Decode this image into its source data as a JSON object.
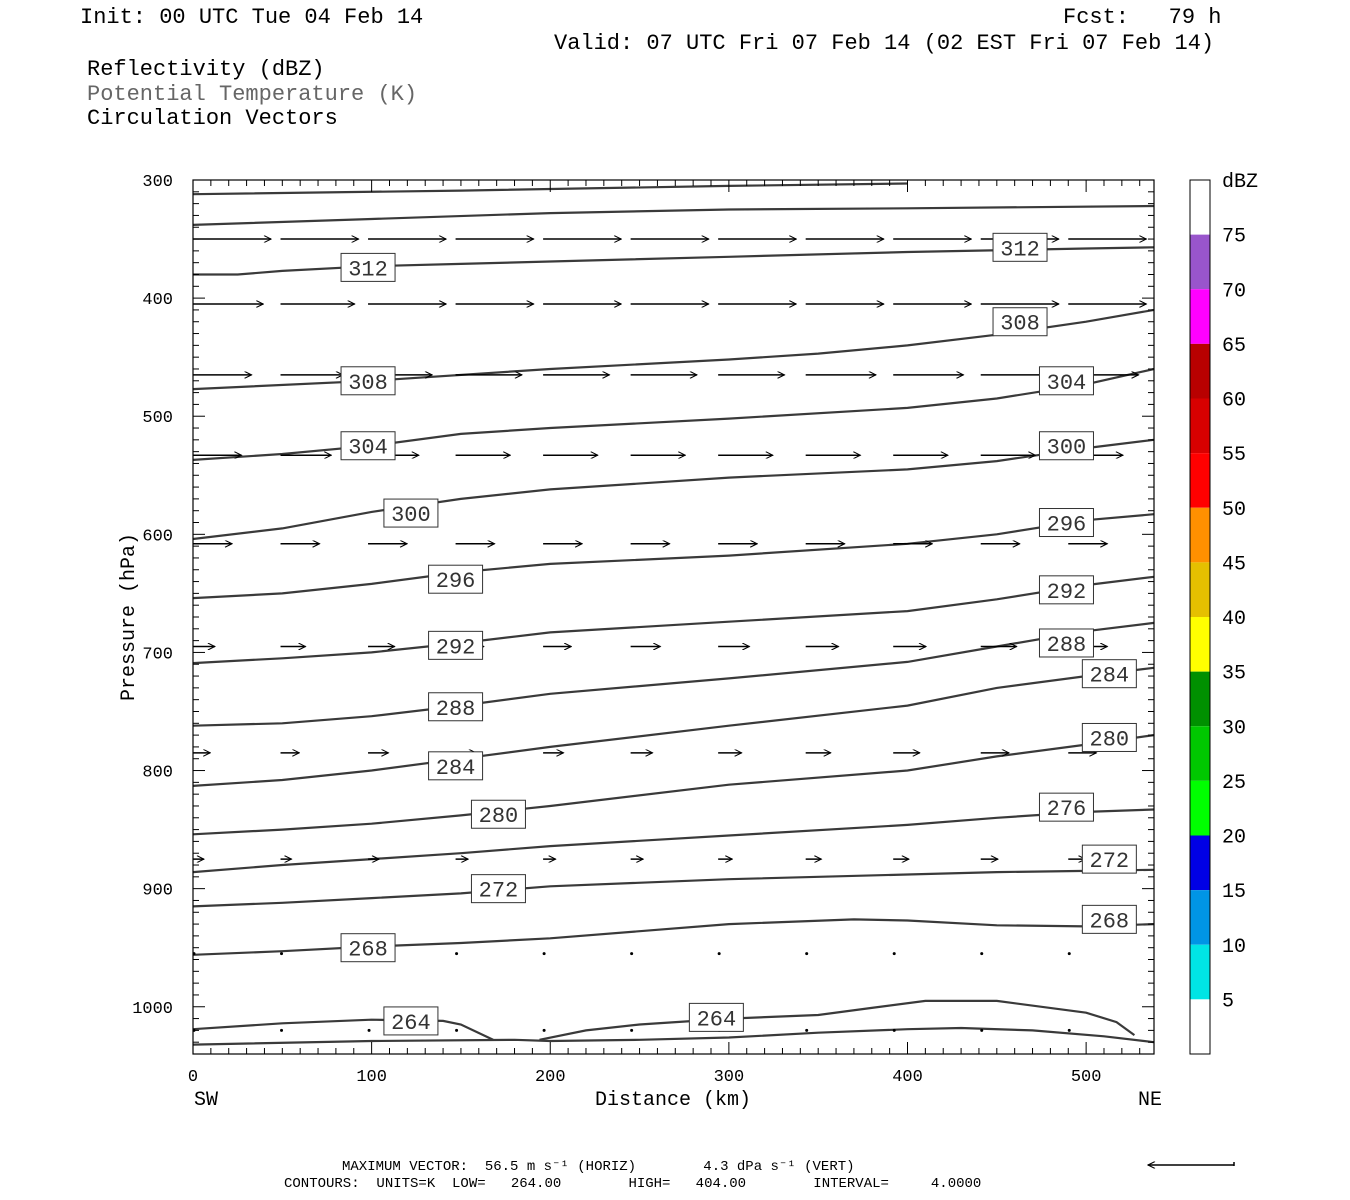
{
  "header": {
    "init": "Init: 00 UTC Tue 04 Feb 14",
    "fcst": "Fcst:   79 h",
    "valid": "Valid: 07 UTC Fri 07 Feb 14 (02 EST Fri 07 Feb 14)"
  },
  "legend": {
    "line1": "Reflectivity (dBZ)",
    "line2": "Potential Temperature (K)",
    "line3": "Circulation Vectors"
  },
  "footer": {
    "line1": "MAXIMUM VECTOR:  56.5 m s⁻¹ (HORIZ)        4.3 dPa s⁻¹ (VERT)",
    "line2": "CONTOURS:  UNITS=K  LOW=   264.00        HIGH=   404.00        INTERVAL=     4.0000"
  },
  "colors": {
    "contour": "#3a3a3a",
    "vector": "#000000",
    "frame": "#000000"
  },
  "chart_data": {
    "type": "contour",
    "xlabel": "Distance (km)",
    "ylabel": "Pressure (hPa)",
    "xlim": [
      0,
      538
    ],
    "ylim": [
      1040,
      300
    ],
    "x_ticks": [
      "0",
      "100",
      "200",
      "300",
      "400",
      "500"
    ],
    "y_ticks": [
      "300",
      "400",
      "500",
      "600",
      "700",
      "800",
      "900",
      "1000"
    ],
    "x_end_labels": {
      "left": "SW",
      "right": "NE"
    },
    "colorbar": {
      "title": "dBZ",
      "labels": [
        "5",
        "10",
        "15",
        "20",
        "25",
        "30",
        "35",
        "40",
        "45",
        "50",
        "55",
        "60",
        "65",
        "70",
        "75"
      ],
      "colors": [
        "#ffffff",
        "#00e5e5",
        "#0095e5",
        "#0000e5",
        "#00ff00",
        "#00c800",
        "#009000",
        "#ffff00",
        "#e5c000",
        "#ff9000",
        "#ff0000",
        "#d80000",
        "#b80000",
        "#ff00ff",
        "#9955cc",
        "#ffffff"
      ]
    },
    "contours": [
      {
        "level": "",
        "points": [
          [
            0,
            312
          ],
          [
            150,
            309
          ],
          [
            300,
            305
          ],
          [
            400,
            303
          ]
        ]
      },
      {
        "level": "",
        "points": [
          [
            0,
            338
          ],
          [
            100,
            333
          ],
          [
            200,
            328
          ],
          [
            300,
            325
          ],
          [
            400,
            324
          ],
          [
            538,
            322
          ]
        ]
      },
      {
        "level": "312",
        "points": [
          [
            0,
            380
          ],
          [
            25,
            380
          ],
          [
            50,
            377
          ],
          [
            100,
            373
          ],
          [
            150,
            371
          ],
          [
            200,
            369
          ],
          [
            300,
            365
          ],
          [
            400,
            361
          ],
          [
            500,
            358
          ],
          [
            538,
            357
          ]
        ]
      },
      {
        "level": "308",
        "points": [
          [
            0,
            477
          ],
          [
            100,
            470
          ],
          [
            200,
            460
          ],
          [
            300,
            452
          ],
          [
            350,
            447
          ],
          [
            400,
            440
          ],
          [
            450,
            431
          ],
          [
            500,
            420
          ],
          [
            538,
            410
          ]
        ]
      },
      {
        "level": "304",
        "points": [
          [
            0,
            537
          ],
          [
            50,
            532
          ],
          [
            100,
            525
          ],
          [
            150,
            515
          ],
          [
            200,
            510
          ],
          [
            300,
            502
          ],
          [
            400,
            493
          ],
          [
            450,
            485
          ],
          [
            500,
            473
          ],
          [
            538,
            460
          ]
        ]
      },
      {
        "level": "300",
        "points": [
          [
            0,
            604
          ],
          [
            50,
            595
          ],
          [
            100,
            581
          ],
          [
            150,
            570
          ],
          [
            200,
            562
          ],
          [
            300,
            552
          ],
          [
            400,
            545
          ],
          [
            450,
            538
          ],
          [
            500,
            527
          ],
          [
            538,
            520
          ]
        ]
      },
      {
        "level": "296",
        "points": [
          [
            0,
            654
          ],
          [
            50,
            650
          ],
          [
            100,
            642
          ],
          [
            150,
            632
          ],
          [
            200,
            625
          ],
          [
            300,
            618
          ],
          [
            400,
            608
          ],
          [
            450,
            600
          ],
          [
            500,
            588
          ],
          [
            538,
            583
          ]
        ]
      },
      {
        "level": "292",
        "points": [
          [
            0,
            709
          ],
          [
            50,
            705
          ],
          [
            100,
            700
          ],
          [
            150,
            692
          ],
          [
            200,
            683
          ],
          [
            300,
            674
          ],
          [
            400,
            665
          ],
          [
            450,
            655
          ],
          [
            500,
            643
          ],
          [
            538,
            636
          ]
        ]
      },
      {
        "level": "288",
        "points": [
          [
            0,
            762
          ],
          [
            50,
            760
          ],
          [
            100,
            754
          ],
          [
            150,
            745
          ],
          [
            200,
            735
          ],
          [
            300,
            722
          ],
          [
            400,
            708
          ],
          [
            450,
            695
          ],
          [
            500,
            682
          ],
          [
            538,
            675
          ]
        ]
      },
      {
        "level": "284",
        "points": [
          [
            0,
            813
          ],
          [
            50,
            808
          ],
          [
            100,
            800
          ],
          [
            150,
            790
          ],
          [
            200,
            780
          ],
          [
            300,
            762
          ],
          [
            400,
            745
          ],
          [
            450,
            730
          ],
          [
            500,
            720
          ],
          [
            538,
            713
          ]
        ]
      },
      {
        "level": "280",
        "points": [
          [
            0,
            854
          ],
          [
            50,
            850
          ],
          [
            100,
            845
          ],
          [
            150,
            838
          ],
          [
            200,
            830
          ],
          [
            300,
            812
          ],
          [
            400,
            800
          ],
          [
            450,
            788
          ],
          [
            500,
            778
          ],
          [
            538,
            770
          ]
        ]
      },
      {
        "level": "276",
        "points": [
          [
            0,
            886
          ],
          [
            50,
            880
          ],
          [
            100,
            875
          ],
          [
            150,
            870
          ],
          [
            200,
            864
          ],
          [
            300,
            855
          ],
          [
            400,
            846
          ],
          [
            450,
            840
          ],
          [
            500,
            835
          ],
          [
            538,
            833
          ]
        ]
      },
      {
        "level": "272",
        "points": [
          [
            0,
            915
          ],
          [
            50,
            912
          ],
          [
            100,
            908
          ],
          [
            150,
            904
          ],
          [
            200,
            898
          ],
          [
            300,
            892
          ],
          [
            400,
            888
          ],
          [
            450,
            886
          ],
          [
            500,
            885
          ],
          [
            538,
            884
          ]
        ]
      },
      {
        "level": "268",
        "points": [
          [
            0,
            956
          ],
          [
            50,
            953
          ],
          [
            100,
            949
          ],
          [
            150,
            946
          ],
          [
            200,
            942
          ],
          [
            300,
            930
          ],
          [
            370,
            926
          ],
          [
            400,
            927
          ],
          [
            450,
            931
          ],
          [
            500,
            932
          ],
          [
            538,
            930
          ]
        ]
      },
      {
        "level": "264",
        "points": [
          [
            0,
            1019
          ],
          [
            50,
            1014
          ],
          [
            100,
            1011
          ],
          [
            140,
            1012
          ],
          [
            150,
            1015
          ],
          [
            168,
            1028
          ]
        ]
      },
      {
        "level": "264",
        "points": [
          [
            194,
            1028
          ],
          [
            220,
            1020
          ],
          [
            250,
            1015
          ],
          [
            300,
            1010
          ],
          [
            350,
            1007
          ],
          [
            380,
            1001
          ],
          [
            410,
            995
          ],
          [
            450,
            995
          ],
          [
            500,
            1005
          ],
          [
            517,
            1013
          ],
          [
            527,
            1024
          ]
        ]
      },
      {
        "level": "",
        "points": [
          [
            0,
            1032
          ],
          [
            100,
            1029
          ],
          [
            180,
            1028
          ],
          [
            200,
            1029
          ],
          [
            250,
            1028
          ],
          [
            300,
            1026
          ],
          [
            350,
            1022
          ],
          [
            400,
            1019
          ],
          [
            430,
            1018
          ],
          [
            470,
            1020
          ],
          [
            510,
            1025
          ],
          [
            538,
            1030
          ]
        ]
      }
    ],
    "contour_labels": [
      {
        "text": "312",
        "x": 98,
        "y": 374
      },
      {
        "text": "312",
        "x": 463,
        "y": 357
      },
      {
        "text": "308",
        "x": 463,
        "y": 420
      },
      {
        "text": "308",
        "x": 98,
        "y": 470
      },
      {
        "text": "304",
        "x": 489,
        "y": 470
      },
      {
        "text": "304",
        "x": 98,
        "y": 525
      },
      {
        "text": "300",
        "x": 489,
        "y": 525
      },
      {
        "text": "300",
        "x": 122,
        "y": 582
      },
      {
        "text": "296",
        "x": 489,
        "y": 590
      },
      {
        "text": "296",
        "x": 147,
        "y": 638
      },
      {
        "text": "292",
        "x": 489,
        "y": 647
      },
      {
        "text": "292",
        "x": 147,
        "y": 694
      },
      {
        "text": "288",
        "x": 489,
        "y": 692
      },
      {
        "text": "284",
        "x": 513,
        "y": 718
      },
      {
        "text": "288",
        "x": 147,
        "y": 746
      },
      {
        "text": "280",
        "x": 513,
        "y": 772
      },
      {
        "text": "284",
        "x": 147,
        "y": 796
      },
      {
        "text": "276",
        "x": 489,
        "y": 831
      },
      {
        "text": "280",
        "x": 171,
        "y": 837
      },
      {
        "text": "272",
        "x": 513,
        "y": 875
      },
      {
        "text": "272",
        "x": 171,
        "y": 900
      },
      {
        "text": "268",
        "x": 513,
        "y": 926
      },
      {
        "text": "268",
        "x": 98,
        "y": 950
      },
      {
        "text": "264",
        "x": 122,
        "y": 1012
      },
      {
        "text": "264",
        "x": 293,
        "y": 1009
      }
    ],
    "vectors": {
      "x_positions": [
        0,
        49,
        98,
        147,
        196,
        245,
        294,
        343,
        392,
        441,
        490
      ],
      "rows": [
        {
          "p": 350,
          "u": [
            1.0,
            1.0,
            1.0,
            1.0,
            1.0,
            1.0,
            1.0,
            1.0,
            1.0,
            1.0,
            1.0
          ],
          "w": [
            0,
            0,
            0,
            0,
            0,
            0,
            0,
            0,
            0,
            0,
            0
          ]
        },
        {
          "p": 405,
          "u": [
            0.9,
            0.95,
            1.0,
            1.0,
            1.0,
            1.0,
            1.0,
            1.0,
            1.0,
            1.0,
            1.0
          ],
          "w": [
            0,
            0,
            0,
            0,
            0,
            0,
            0,
            0,
            0,
            0,
            0
          ]
        },
        {
          "p": 465,
          "u": [
            0.75,
            0.8,
            0.82,
            0.85,
            0.85,
            0.85,
            0.85,
            0.9,
            0.9,
            0.9,
            0.9
          ],
          "w": [
            0,
            0,
            0,
            0,
            0,
            0,
            0,
            0,
            0,
            0,
            0
          ]
        },
        {
          "p": 533,
          "u": [
            0.62,
            0.65,
            0.65,
            0.7,
            0.7,
            0.7,
            0.7,
            0.7,
            0.7,
            0.7,
            0.7
          ],
          "w": [
            0,
            0,
            0,
            0,
            0,
            0,
            0,
            0,
            0,
            0,
            0
          ]
        },
        {
          "p": 608,
          "u": [
            0.5,
            0.5,
            0.5,
            0.5,
            0.5,
            0.5,
            0.5,
            0.5,
            0.5,
            0.5,
            0.5
          ],
          "w": [
            0,
            0,
            0,
            0,
            0,
            0,
            0,
            0,
            0,
            0,
            0
          ]
        },
        {
          "p": 695,
          "u": [
            0.28,
            0.32,
            0.34,
            0.36,
            0.36,
            0.38,
            0.4,
            0.42,
            0.42,
            0.46,
            0.5
          ],
          "w": [
            0,
            0,
            0,
            0,
            0,
            0,
            0,
            0,
            0,
            0,
            0
          ]
        },
        {
          "p": 785,
          "u": [
            0.22,
            0.24,
            0.26,
            0.26,
            0.26,
            0.28,
            0.3,
            0.32,
            0.34,
            0.36,
            0.36
          ],
          "w": [
            0,
            0,
            0,
            0,
            0,
            0,
            0,
            0,
            0,
            0,
            0
          ]
        },
        {
          "p": 875,
          "u": [
            0.14,
            0.14,
            0.14,
            0.16,
            0.16,
            0.16,
            0.18,
            0.2,
            0.2,
            0.22,
            0.22
          ],
          "w": [
            0,
            0,
            0,
            0,
            0,
            0,
            0,
            0,
            0,
            0,
            0
          ]
        },
        {
          "p": 955,
          "u": [
            0.02,
            0.02,
            0.02,
            0.02,
            0.02,
            0.02,
            0.02,
            0.02,
            0.02,
            0.02,
            0.02
          ],
          "w": [
            0,
            0,
            0,
            0,
            0,
            0,
            0,
            0,
            0,
            0,
            0
          ]
        },
        {
          "p": 1020,
          "u": [
            0.02,
            0.02,
            0.02,
            0.02,
            0.02,
            0.02,
            0.02,
            0.02,
            0.02,
            0.02,
            0.02
          ],
          "w": [
            0,
            0,
            0,
            0,
            0,
            0,
            0,
            0,
            0,
            0,
            0
          ]
        }
      ]
    }
  }
}
